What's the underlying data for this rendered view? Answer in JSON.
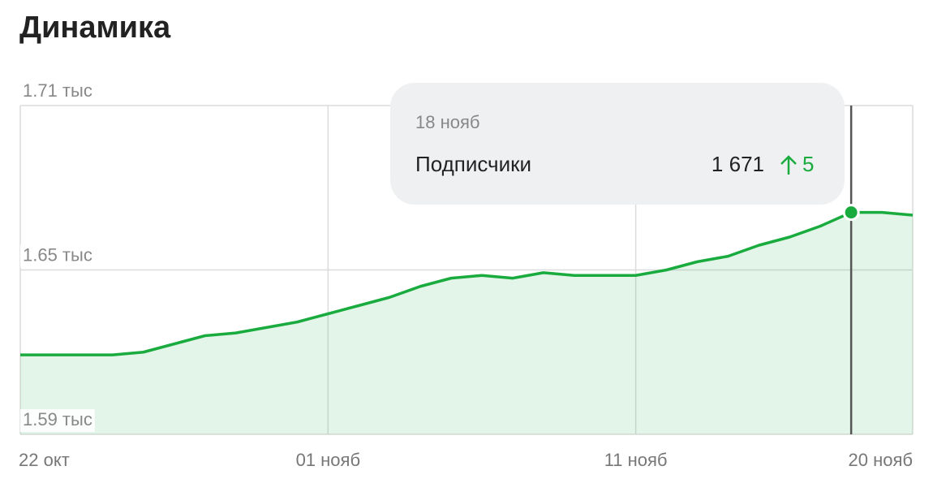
{
  "chart_data": {
    "type": "area",
    "title": "Динамика",
    "categories": [
      "22 окт",
      null,
      null,
      null,
      null,
      null,
      null,
      null,
      null,
      null,
      "01 нояб",
      null,
      null,
      null,
      null,
      null,
      null,
      null,
      null,
      null,
      "11 нояб",
      null,
      null,
      null,
      null,
      null,
      null,
      null,
      null,
      "20 нояб"
    ],
    "series": [
      {
        "name": "Подписчики",
        "color": "#1aab3f",
        "values": [
          1619,
          1619,
          1619,
          1619,
          1620,
          1623,
          1626,
          1627,
          1629,
          1631,
          1634,
          1637,
          1640,
          1644,
          1647,
          1648,
          1647,
          1649,
          1648,
          1648,
          1648,
          1650,
          1653,
          1655,
          1659,
          1662,
          1666,
          1671,
          1671,
          1670
        ]
      }
    ],
    "ylim": [
      1590,
      1710
    ],
    "yticks": [
      {
        "value": 1590,
        "label": "1.59 тыс"
      },
      {
        "value": 1650,
        "label": "1.65 тыс"
      },
      {
        "value": 1710,
        "label": "1.71 тыс"
      }
    ],
    "grid": true,
    "tooltip": {
      "date": "18 нояб",
      "label": "Подписчики",
      "value": 1671,
      "value_label": "1 671",
      "change": 5
    }
  }
}
